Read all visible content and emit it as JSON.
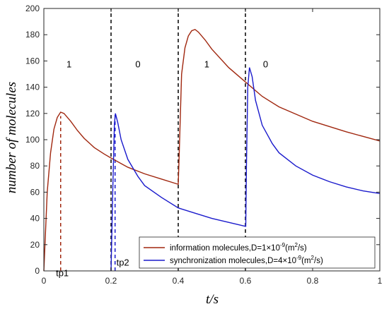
{
  "chart_data": {
    "type": "line",
    "xlabel": "t/s",
    "ylabel": "number of molecules",
    "xlim": [
      0,
      1
    ],
    "ylim": [
      0,
      200
    ],
    "xticks": [
      "0",
      "0.2",
      "0.4",
      "0.6",
      "0.8",
      "1"
    ],
    "yticks": [
      "0",
      "20",
      "40",
      "60",
      "80",
      "100",
      "120",
      "140",
      "160",
      "180",
      "200"
    ],
    "xtick_values": [
      0,
      0.2,
      0.4,
      0.6,
      0.8,
      1
    ],
    "ytick_values": [
      0,
      20,
      40,
      60,
      80,
      100,
      120,
      140,
      160,
      180,
      200
    ],
    "grid": false,
    "legend_position": "bottom-right",
    "series": [
      {
        "name": "information molecules,D=1×10^-9(m^2/s)",
        "legend_main": "information molecules,D=1×10",
        "legend_exp": "-9",
        "legend_unit": "(m",
        "legend_unit_exp": "2",
        "legend_unit_tail": "/s)",
        "color": "#a0270f",
        "points": [
          [
            0,
            0
          ],
          [
            0.005,
            30
          ],
          [
            0.01,
            60
          ],
          [
            0.02,
            90
          ],
          [
            0.03,
            108
          ],
          [
            0.04,
            117
          ],
          [
            0.05,
            121
          ],
          [
            0.06,
            120
          ],
          [
            0.08,
            114
          ],
          [
            0.1,
            107
          ],
          [
            0.12,
            101
          ],
          [
            0.15,
            94
          ],
          [
            0.18,
            89
          ],
          [
            0.2,
            86
          ],
          [
            0.25,
            79
          ],
          [
            0.3,
            74
          ],
          [
            0.35,
            70
          ],
          [
            0.4,
            66
          ],
          [
            0.403,
            90
          ],
          [
            0.41,
            150
          ],
          [
            0.42,
            170
          ],
          [
            0.43,
            179
          ],
          [
            0.44,
            183
          ],
          [
            0.45,
            184
          ],
          [
            0.46,
            182
          ],
          [
            0.48,
            176
          ],
          [
            0.5,
            169
          ],
          [
            0.55,
            155
          ],
          [
            0.6,
            144
          ],
          [
            0.65,
            133
          ],
          [
            0.7,
            125
          ],
          [
            0.8,
            114
          ],
          [
            0.9,
            106
          ],
          [
            1.0,
            99
          ]
        ]
      },
      {
        "name": "synchronization molecules,D=4×10^-9(m^2/s)",
        "legend_main": "synchronization molecules,D=4×10",
        "legend_exp": "-9",
        "legend_unit": "(m",
        "legend_unit_exp": "2",
        "legend_unit_tail": "/s)",
        "color": "#1a1acc",
        "points": [
          [
            0.2,
            0
          ],
          [
            0.205,
            60
          ],
          [
            0.21,
            112
          ],
          [
            0.213,
            120
          ],
          [
            0.22,
            113
          ],
          [
            0.23,
            100
          ],
          [
            0.25,
            85
          ],
          [
            0.28,
            72
          ],
          [
            0.3,
            65
          ],
          [
            0.35,
            56
          ],
          [
            0.4,
            48
          ],
          [
            0.45,
            44
          ],
          [
            0.5,
            40
          ],
          [
            0.55,
            37
          ],
          [
            0.6,
            34
          ],
          [
            0.601,
            34
          ],
          [
            0.603,
            80
          ],
          [
            0.607,
            140
          ],
          [
            0.612,
            155
          ],
          [
            0.62,
            148
          ],
          [
            0.63,
            130
          ],
          [
            0.65,
            111
          ],
          [
            0.68,
            97
          ],
          [
            0.7,
            90
          ],
          [
            0.75,
            80
          ],
          [
            0.8,
            73
          ],
          [
            0.85,
            68
          ],
          [
            0.9,
            64
          ],
          [
            0.95,
            61
          ],
          [
            1.0,
            59
          ]
        ]
      }
    ],
    "vertical_lines": [
      {
        "x": 0.2,
        "style": "dashed",
        "color": "#000000"
      },
      {
        "x": 0.4,
        "style": "dashed",
        "color": "#000000"
      },
      {
        "x": 0.6,
        "style": "dashed",
        "color": "#000000"
      },
      {
        "x": 0.05,
        "y_top": 118,
        "style": "dashed",
        "color": "#a0270f"
      },
      {
        "x": 0.212,
        "y_top": 120,
        "style": "dashed",
        "color": "#1a1acc"
      }
    ],
    "annotations": [
      {
        "text": "1",
        "x": 0.075,
        "y": 155
      },
      {
        "text": "0",
        "x": 0.28,
        "y": 155
      },
      {
        "text": "1",
        "x": 0.485,
        "y": 155
      },
      {
        "text": "0",
        "x": 0.66,
        "y": 155
      },
      {
        "text": "tp1",
        "x": 0.055,
        "y": -4
      },
      {
        "text": "tp2",
        "x": 0.235,
        "y": 4
      }
    ]
  }
}
